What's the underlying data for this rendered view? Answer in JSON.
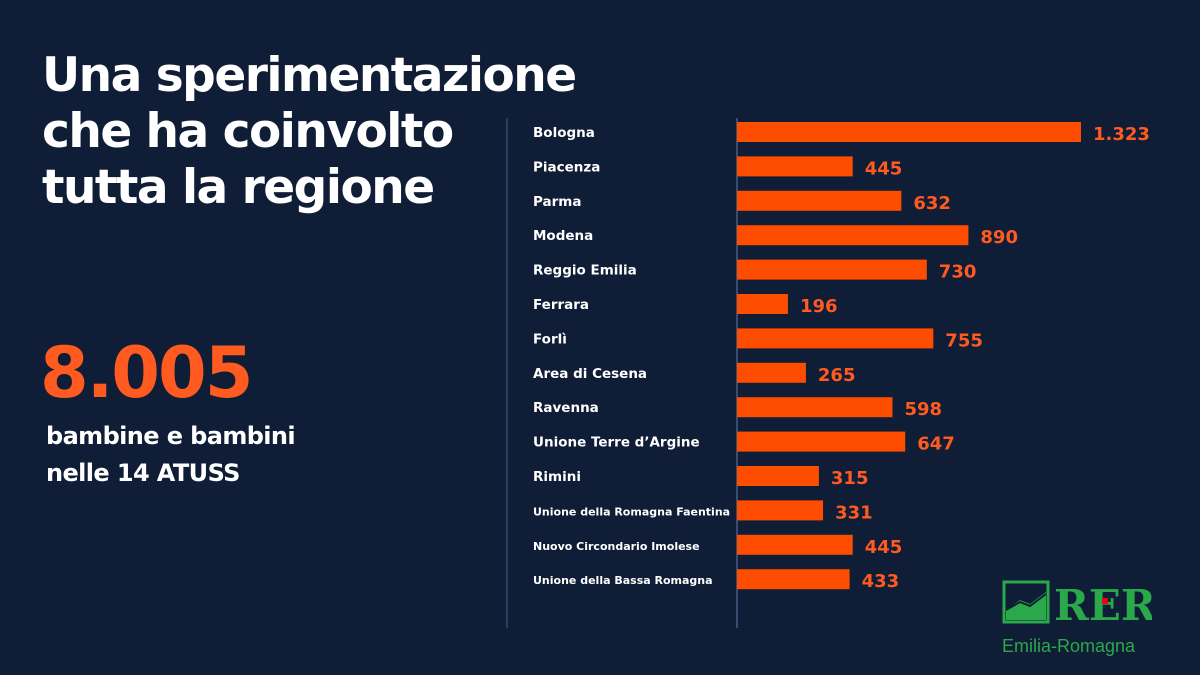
{
  "headline": {
    "lines": [
      "Una sperimentazione",
      "che ha coinvolto",
      "tutta la regione"
    ]
  },
  "summary": {
    "total": "8.005",
    "lines": [
      "bambine e bambini",
      "nelle 14 ATUSS"
    ]
  },
  "chart_data": {
    "type": "bar",
    "orientation": "horizontal",
    "categories": [
      "Bologna",
      "Piacenza",
      "Parma",
      "Modena",
      "Reggio Emilia",
      "Ferrara",
      "Forlì",
      "Area di Cesena",
      "Ravenna",
      "Unione Terre d’Argine",
      "Rimini",
      "Unione della Romagna Faentina",
      "Nuovo Circondario Imolese",
      "Unione della Bassa Romagna"
    ],
    "values": [
      1323,
      445,
      632,
      890,
      730,
      196,
      755,
      265,
      598,
      647,
      315,
      331,
      445,
      433
    ],
    "value_labels": [
      "1.323",
      "445",
      "632",
      "890",
      "730",
      "196",
      "755",
      "265",
      "598",
      "647",
      "315",
      "331",
      "445",
      "433"
    ],
    "title": "",
    "xlabel": "",
    "ylabel": "",
    "xlim": [
      0,
      1323
    ],
    "grid": false,
    "legend": "none",
    "bar_color": "#ff4d00",
    "label_color": "#ff5a1f"
  },
  "logo": {
    "mark": "RER",
    "caption": "Emilia-Romagna",
    "color": "#2aa84a",
    "accent": "#e30613"
  },
  "colors": {
    "background": "#0f1d36",
    "accent": "#ff5a1f"
  }
}
